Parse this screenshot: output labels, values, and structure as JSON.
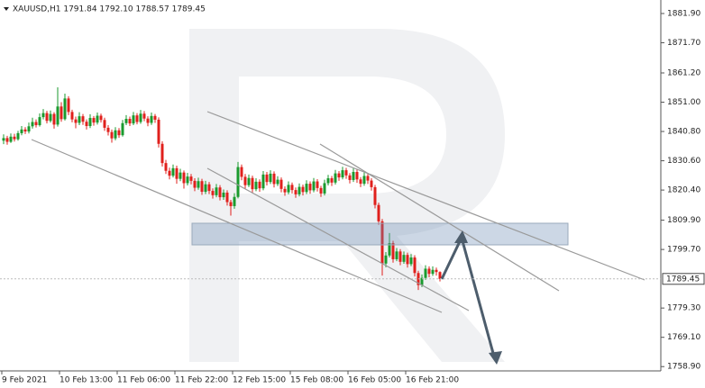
{
  "chart_data": {
    "type": "candlestick",
    "title": "XAUUSD,H1  1791.84 1792.10 1788.57 1789.45",
    "up_color": "#1a9a2e",
    "down_color": "#e0201c",
    "ylim": [
      1757.4,
      1886.6
    ],
    "yticks": [
      {
        "value": 1881.9,
        "label": "1881.90"
      },
      {
        "value": 1871.7,
        "label": "1871.70"
      },
      {
        "value": 1861.2,
        "label": "1861.20"
      },
      {
        "value": 1851.0,
        "label": "1851.00"
      },
      {
        "value": 1840.8,
        "label": "1840.80"
      },
      {
        "value": 1830.6,
        "label": "1830.60"
      },
      {
        "value": 1820.4,
        "label": "1820.40"
      },
      {
        "value": 1809.9,
        "label": "1809.90"
      },
      {
        "value": 1799.7,
        "label": "1799.70"
      },
      {
        "value": 1779.3,
        "label": "1779.30"
      },
      {
        "value": 1769.1,
        "label": "1769.10"
      },
      {
        "value": 1758.9,
        "label": "1758.90"
      }
    ],
    "categories": [
      "9 Feb 2021",
      null,
      null,
      null,
      null,
      null,
      null,
      null,
      null,
      null,
      null,
      null,
      null,
      null,
      null,
      null,
      "10 Feb 13:00",
      null,
      null,
      null,
      null,
      null,
      null,
      null,
      null,
      null,
      null,
      null,
      null,
      null,
      null,
      null,
      "11 Feb 06:00",
      null,
      null,
      null,
      null,
      null,
      null,
      null,
      null,
      null,
      null,
      null,
      null,
      null,
      null,
      null,
      "11 Feb 22:00",
      null,
      null,
      null,
      null,
      null,
      null,
      null,
      null,
      null,
      null,
      null,
      null,
      null,
      null,
      null,
      "12 Feb 15:00",
      null,
      null,
      null,
      null,
      null,
      null,
      null,
      null,
      null,
      null,
      null,
      null,
      null,
      null,
      null,
      "15 Feb 08:00",
      null,
      null,
      null,
      null,
      null,
      null,
      null,
      null,
      null,
      null,
      null,
      null,
      null,
      null,
      null,
      "16 Feb 05:00",
      null,
      null,
      null,
      null,
      null,
      null,
      null,
      null,
      null,
      null,
      null,
      null,
      null,
      null,
      null,
      "16 Feb 21:00",
      null,
      null,
      null,
      null,
      null,
      null,
      null,
      null,
      null
    ],
    "ohlc": [
      [
        1837.6,
        1839.8,
        1836.4,
        1838.5
      ],
      [
        1838.5,
        1839.3,
        1836.2,
        1837.2
      ],
      [
        1837.2,
        1840.1,
        1836.8,
        1839.0
      ],
      [
        1839.0,
        1840.0,
        1837.3,
        1838.1
      ],
      [
        1838.1,
        1841.0,
        1837.6,
        1840.2
      ],
      [
        1840.2,
        1842.7,
        1839.5,
        1841.5
      ],
      [
        1841.5,
        1842.3,
        1839.9,
        1840.8
      ],
      [
        1840.8,
        1843.9,
        1840.1,
        1842.6
      ],
      [
        1842.6,
        1845.6,
        1841.8,
        1844.1
      ],
      [
        1844.1,
        1845.0,
        1842.2,
        1843.0
      ],
      [
        1843.0,
        1847.1,
        1842.5,
        1845.8
      ],
      [
        1845.8,
        1848.6,
        1845.0,
        1847.2
      ],
      [
        1847.2,
        1848.0,
        1843.6,
        1844.5
      ],
      [
        1844.5,
        1848.1,
        1843.9,
        1846.9
      ],
      [
        1846.9,
        1847.5,
        1841.8,
        1843.2
      ],
      [
        1843.2,
        1856.2,
        1842.5,
        1849.5
      ],
      [
        1849.5,
        1851.0,
        1844.2,
        1845.1
      ],
      [
        1845.1,
        1854.0,
        1844.6,
        1852.3
      ],
      [
        1852.3,
        1853.1,
        1846.5,
        1847.6
      ],
      [
        1847.6,
        1848.4,
        1844.0,
        1845.0
      ],
      [
        1845.0,
        1846.0,
        1841.9,
        1843.8
      ],
      [
        1843.8,
        1847.5,
        1843.0,
        1846.1
      ],
      [
        1846.1,
        1846.9,
        1843.1,
        1844.2
      ],
      [
        1844.2,
        1845.0,
        1841.5,
        1842.7
      ],
      [
        1842.7,
        1846.8,
        1842.0,
        1845.5
      ],
      [
        1845.5,
        1846.2,
        1842.8,
        1843.9
      ],
      [
        1843.9,
        1847.4,
        1843.2,
        1846.3
      ],
      [
        1846.3,
        1847.0,
        1843.9,
        1844.8
      ],
      [
        1844.8,
        1845.6,
        1841.0,
        1842.1
      ],
      [
        1842.1,
        1843.0,
        1839.4,
        1840.6
      ],
      [
        1840.6,
        1841.5,
        1836.9,
        1838.4
      ],
      [
        1838.4,
        1842.3,
        1837.7,
        1841.2
      ],
      [
        1841.2,
        1842.0,
        1838.6,
        1839.5
      ],
      [
        1839.5,
        1844.8,
        1839.0,
        1843.7
      ],
      [
        1843.7,
        1846.5,
        1843.0,
        1845.2
      ],
      [
        1845.2,
        1846.0,
        1842.7,
        1843.6
      ],
      [
        1843.6,
        1847.6,
        1843.0,
        1846.4
      ],
      [
        1846.4,
        1847.2,
        1843.3,
        1844.1
      ],
      [
        1844.1,
        1848.3,
        1843.5,
        1847.0
      ],
      [
        1847.0,
        1847.9,
        1844.4,
        1845.3
      ],
      [
        1845.3,
        1846.1,
        1842.6,
        1843.8
      ],
      [
        1843.8,
        1847.4,
        1843.1,
        1846.2
      ],
      [
        1846.2,
        1846.9,
        1843.8,
        1844.9
      ],
      [
        1844.9,
        1845.7,
        1835.2,
        1836.5
      ],
      [
        1836.5,
        1837.4,
        1828.6,
        1829.8
      ],
      [
        1829.8,
        1830.9,
        1826.0,
        1827.1
      ],
      [
        1827.1,
        1828.2,
        1824.1,
        1825.4
      ],
      [
        1825.4,
        1829.3,
        1824.8,
        1828.0
      ],
      [
        1828.0,
        1828.9,
        1822.6,
        1824.3
      ],
      [
        1824.3,
        1827.8,
        1823.5,
        1826.5
      ],
      [
        1826.5,
        1827.2,
        1820.9,
        1822.8
      ],
      [
        1822.8,
        1826.4,
        1822.0,
        1825.1
      ],
      [
        1825.1,
        1826.0,
        1822.4,
        1823.6
      ],
      [
        1823.6,
        1824.5,
        1820.0,
        1821.2
      ],
      [
        1821.2,
        1824.7,
        1820.5,
        1823.5
      ],
      [
        1823.5,
        1824.3,
        1818.7,
        1819.8
      ],
      [
        1819.8,
        1823.6,
        1819.0,
        1822.4
      ],
      [
        1822.4,
        1823.2,
        1819.0,
        1820.1
      ],
      [
        1820.1,
        1821.0,
        1817.4,
        1818.6
      ],
      [
        1818.6,
        1822.5,
        1817.9,
        1821.3
      ],
      [
        1821.3,
        1822.1,
        1816.8,
        1817.9
      ],
      [
        1817.9,
        1820.6,
        1817.0,
        1819.5
      ],
      [
        1819.5,
        1820.3,
        1815.0,
        1816.2
      ],
      [
        1816.2,
        1817.0,
        1811.5,
        1814.8
      ],
      [
        1814.8,
        1819.3,
        1813.9,
        1818.0
      ],
      [
        1818.0,
        1830.2,
        1817.5,
        1828.4
      ],
      [
        1828.4,
        1829.3,
        1823.8,
        1825.0
      ],
      [
        1825.0,
        1826.0,
        1820.9,
        1822.1
      ],
      [
        1822.1,
        1825.8,
        1821.4,
        1824.6
      ],
      [
        1824.6,
        1825.4,
        1819.5,
        1820.7
      ],
      [
        1820.7,
        1824.5,
        1820.0,
        1823.3
      ],
      [
        1823.3,
        1824.1,
        1819.8,
        1821.0
      ],
      [
        1821.0,
        1827.0,
        1820.3,
        1825.8
      ],
      [
        1825.8,
        1826.7,
        1822.0,
        1823.2
      ],
      [
        1823.2,
        1827.3,
        1822.5,
        1826.1
      ],
      [
        1826.1,
        1826.9,
        1821.3,
        1822.5
      ],
      [
        1822.5,
        1825.2,
        1821.8,
        1824.0
      ],
      [
        1824.0,
        1824.8,
        1819.6,
        1820.8
      ],
      [
        1820.8,
        1821.7,
        1818.4,
        1819.6
      ],
      [
        1819.6,
        1823.4,
        1818.9,
        1822.2
      ],
      [
        1822.2,
        1823.0,
        1819.2,
        1820.4
      ],
      [
        1820.4,
        1821.3,
        1817.7,
        1818.9
      ],
      [
        1818.9,
        1822.7,
        1818.2,
        1821.5
      ],
      [
        1821.5,
        1822.3,
        1818.5,
        1819.7
      ],
      [
        1819.7,
        1823.8,
        1819.0,
        1822.6
      ],
      [
        1822.6,
        1823.4,
        1819.1,
        1820.3
      ],
      [
        1820.3,
        1824.6,
        1819.6,
        1823.4
      ],
      [
        1823.4,
        1824.2,
        1819.9,
        1821.1
      ],
      [
        1821.1,
        1821.9,
        1818.0,
        1819.2
      ],
      [
        1819.2,
        1824.0,
        1818.5,
        1822.8
      ],
      [
        1822.8,
        1825.7,
        1822.0,
        1824.5
      ],
      [
        1824.5,
        1825.3,
        1821.8,
        1823.0
      ],
      [
        1823.0,
        1827.4,
        1822.3,
        1826.2
      ],
      [
        1826.2,
        1827.0,
        1823.6,
        1824.8
      ],
      [
        1824.8,
        1828.5,
        1824.1,
        1827.3
      ],
      [
        1827.3,
        1828.1,
        1824.3,
        1825.5
      ],
      [
        1825.5,
        1826.3,
        1822.7,
        1823.9
      ],
      [
        1823.9,
        1827.9,
        1823.2,
        1826.7
      ],
      [
        1826.7,
        1827.5,
        1822.9,
        1824.1
      ],
      [
        1824.1,
        1824.9,
        1821.4,
        1822.6
      ],
      [
        1822.6,
        1826.5,
        1821.9,
        1825.3
      ],
      [
        1825.3,
        1826.1,
        1822.5,
        1823.7
      ],
      [
        1823.7,
        1824.5,
        1820.2,
        1821.4
      ],
      [
        1821.4,
        1822.2,
        1814.0,
        1815.2
      ],
      [
        1815.2,
        1816.0,
        1808.3,
        1809.5
      ],
      [
        1809.5,
        1810.3,
        1790.6,
        1794.8
      ],
      [
        1794.8,
        1798.8,
        1793.5,
        1797.6
      ],
      [
        1797.6,
        1805.4,
        1796.9,
        1801.9
      ],
      [
        1801.9,
        1802.7,
        1795.1,
        1796.3
      ],
      [
        1796.3,
        1800.2,
        1795.6,
        1799.0
      ],
      [
        1799.0,
        1799.8,
        1794.2,
        1795.4
      ],
      [
        1795.4,
        1799.0,
        1794.7,
        1797.8
      ],
      [
        1797.8,
        1798.6,
        1793.4,
        1794.6
      ],
      [
        1794.6,
        1798.1,
        1793.9,
        1796.9
      ],
      [
        1796.9,
        1797.7,
        1790.3,
        1791.5
      ],
      [
        1791.5,
        1792.3,
        1785.6,
        1787.3
      ],
      [
        1787.3,
        1791.0,
        1786.6,
        1789.8
      ],
      [
        1789.8,
        1794.2,
        1789.1,
        1793.0
      ],
      [
        1793.0,
        1793.8,
        1790.0,
        1791.2
      ],
      [
        1791.2,
        1793.8,
        1790.5,
        1792.6
      ],
      [
        1792.6,
        1793.4,
        1790.6,
        1791.84
      ],
      [
        1791.84,
        1792.1,
        1788.57,
        1789.45
      ]
    ]
  }
}
